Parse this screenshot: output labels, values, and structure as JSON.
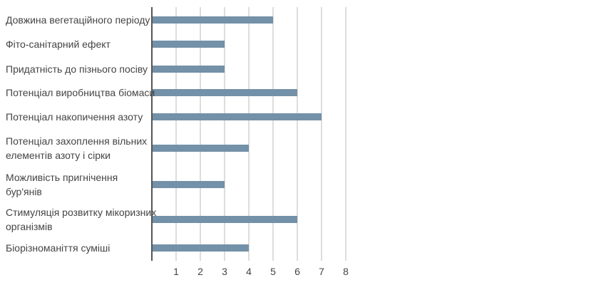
{
  "chart_data": {
    "type": "bar",
    "orientation": "horizontal",
    "categories": [
      "Довжина вегетаційного періоду",
      "Фіто-санітарний ефект",
      "Придатність до пізнього посіву",
      "Потенціал виробництва біомаси",
      "Потенціал накопичення азоту",
      "Потенціал захоплення вільних елементів азоту і сірки",
      "Можливість пригнічення бур'янів",
      "Стимуляція розвитку мікоризних організмів",
      "Біорізноманіття суміші"
    ],
    "category_lines": [
      [
        "Довжина вегетаційного періоду"
      ],
      [
        "Фіто-санітарний ефект"
      ],
      [
        "Придатність до пізнього посіву"
      ],
      [
        "Потенціал виробництва біомаси"
      ],
      [
        "Потенціал накопичення азоту"
      ],
      [
        "Потенціал захоплення вільних",
        "елементів азоту і сірки"
      ],
      [
        "Можливість пригнічення",
        "бур'янів"
      ],
      [
        "Стимуляція розвитку мікоризних",
        "організмів"
      ],
      [
        "Біорізноманіття суміші"
      ]
    ],
    "values": [
      5,
      3,
      3,
      6,
      7,
      4,
      3,
      6,
      4
    ],
    "x_ticks": [
      1,
      2,
      3,
      4,
      5,
      6,
      7,
      8
    ],
    "xlim": [
      0,
      8
    ],
    "grid": true,
    "legend": "none",
    "title": "",
    "xlabel": "",
    "ylabel": "",
    "colors": {
      "bar": "#7391a8",
      "grid": "#bbbbbb",
      "axis": "#555555",
      "text": "#444444"
    }
  }
}
